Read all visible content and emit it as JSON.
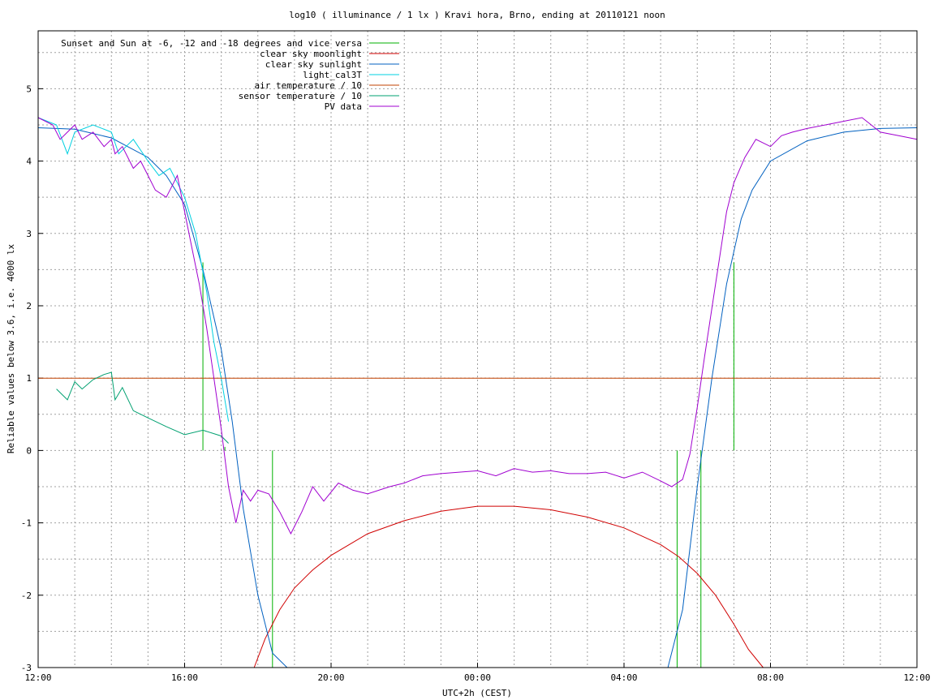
{
  "chart_data": {
    "type": "line",
    "title": "log10 ( illuminance / 1 lx ) Kravi hora, Brno, ending at 20110121 noon",
    "xlabel": "UTC+2h (CEST)",
    "ylabel": "Reliable values below 3.6, i.e. 4000 lx",
    "x_tick_labels": [
      "12:00",
      "16:00",
      "20:00",
      "00:00",
      "04:00",
      "08:00",
      "12:00"
    ],
    "x_tick_hours": [
      0,
      4,
      8,
      12,
      16,
      20,
      24
    ],
    "x_range_hours": [
      0,
      24
    ],
    "ylim": [
      -3,
      5.8
    ],
    "y_ticks": [
      -3,
      -2,
      -1,
      0,
      1,
      2,
      3,
      4,
      5
    ],
    "grid": true,
    "legend_position": "top-left",
    "series": [
      {
        "name": "Sunset and Sun at -6, -12 and -18 degrees and vice versa",
        "color": "#00b000",
        "kind": "impulses",
        "x": [
          4.5,
          5.1,
          6.4,
          17.45,
          18.1,
          19.0
        ],
        "values": [
          2.6,
          0.05,
          -3.0,
          -3.0,
          0.0,
          2.6
        ],
        "base": [
          0,
          0,
          0,
          0,
          0,
          0
        ],
        "x_alt_tops": [
          6.4,
          17.45,
          18.1
        ],
        "note_values_as_shown": [
          2.6,
          0.05,
          0.0,
          0.0,
          0.0,
          2.6
        ]
      },
      {
        "name": "clear sky moonlight",
        "color": "#d00000",
        "x": [
          5.9,
          6.2,
          6.6,
          7.0,
          7.5,
          8.0,
          9.0,
          10.0,
          11.0,
          12.0,
          13.0,
          14.0,
          15.0,
          16.0,
          17.0,
          17.5,
          18.0,
          18.5,
          19.0,
          19.4,
          19.8
        ],
        "values": [
          -3.0,
          -2.6,
          -2.2,
          -1.9,
          -1.65,
          -1.45,
          -1.15,
          -0.97,
          -0.84,
          -0.77,
          -0.77,
          -0.82,
          -0.92,
          -1.07,
          -1.3,
          -1.47,
          -1.7,
          -2.0,
          -2.4,
          -2.75,
          -3.0
        ]
      },
      {
        "name": "clear sky sunlight",
        "color": "#0060c0",
        "x": [
          0.0,
          1.0,
          2.0,
          3.0,
          3.5,
          4.0,
          4.5,
          5.0,
          5.3,
          5.6,
          6.0,
          6.4,
          6.8,
          17.2,
          17.6,
          18.0,
          18.4,
          18.8,
          19.2,
          19.5,
          20.0,
          21.0,
          22.0,
          23.0,
          24.0
        ],
        "values": [
          4.46,
          4.44,
          4.32,
          4.05,
          3.8,
          3.4,
          2.5,
          1.4,
          0.4,
          -0.8,
          -2.0,
          -2.8,
          -3.0,
          -3.0,
          -2.2,
          -0.5,
          1.0,
          2.3,
          3.2,
          3.6,
          4.0,
          4.28,
          4.4,
          4.45,
          4.46
        ]
      },
      {
        "name": "light_cal3T",
        "color": "#00d0e0",
        "x": [
          0.0,
          0.5,
          0.8,
          1.0,
          1.5,
          2.0,
          2.2,
          2.6,
          3.0,
          3.3,
          3.6,
          3.8,
          4.0,
          4.3,
          4.6,
          4.8,
          5.0,
          5.2
        ],
        "values": [
          4.6,
          4.5,
          4.1,
          4.4,
          4.5,
          4.4,
          4.1,
          4.3,
          4.0,
          3.8,
          3.9,
          3.7,
          3.5,
          3.0,
          2.2,
          1.5,
          1.0,
          0.4
        ]
      },
      {
        "name": "air temperature / 10",
        "color": "#c04000",
        "x": [
          0.0,
          23.0
        ],
        "values": [
          1.0,
          1.0
        ]
      },
      {
        "name": "sensor temperature / 10",
        "color": "#00a070",
        "x": [
          0.5,
          0.8,
          1.0,
          1.2,
          1.5,
          1.8,
          2.0,
          2.1,
          2.3,
          2.6,
          3.0,
          3.5,
          4.0,
          4.5,
          5.0,
          5.2
        ],
        "values": [
          0.85,
          0.7,
          0.95,
          0.85,
          0.98,
          1.05,
          1.08,
          0.7,
          0.87,
          0.55,
          0.45,
          0.33,
          0.22,
          0.28,
          0.2,
          0.1
        ]
      },
      {
        "name": "PV data",
        "color": "#a000d0",
        "x": [
          0.0,
          0.4,
          0.6,
          0.8,
          1.0,
          1.2,
          1.5,
          1.8,
          2.0,
          2.1,
          2.3,
          2.6,
          2.8,
          3.0,
          3.2,
          3.5,
          3.7,
          3.8,
          4.0,
          4.2,
          4.4,
          4.6,
          4.8,
          5.0,
          5.2,
          5.4,
          5.6,
          5.8,
          6.0,
          6.3,
          6.6,
          6.9,
          7.2,
          7.5,
          7.8,
          8.2,
          8.6,
          9.0,
          9.6,
          10.0,
          10.5,
          11.0,
          11.5,
          12.0,
          12.5,
          13.0,
          13.5,
          14.0,
          14.5,
          15.0,
          15.5,
          16.0,
          16.5,
          17.0,
          17.3,
          17.6,
          17.8,
          18.0,
          18.2,
          18.5,
          18.8,
          19.0,
          19.3,
          19.6,
          20.0,
          20.3,
          20.6,
          21.0,
          21.5,
          22.0,
          22.5,
          23.0,
          23.5,
          24.0
        ],
        "values": [
          4.6,
          4.5,
          4.3,
          4.4,
          4.5,
          4.3,
          4.4,
          4.2,
          4.3,
          4.1,
          4.2,
          3.9,
          4.0,
          3.8,
          3.6,
          3.5,
          3.7,
          3.8,
          3.3,
          2.8,
          2.3,
          1.7,
          1.0,
          0.3,
          -0.5,
          -1.0,
          -0.55,
          -0.7,
          -0.55,
          -0.6,
          -0.85,
          -1.15,
          -0.85,
          -0.5,
          -0.7,
          -0.45,
          -0.55,
          -0.6,
          -0.5,
          -0.45,
          -0.35,
          -0.32,
          -0.3,
          -0.28,
          -0.35,
          -0.25,
          -0.3,
          -0.28,
          -0.32,
          -0.32,
          -0.3,
          -0.38,
          -0.3,
          -0.42,
          -0.5,
          -0.4,
          -0.05,
          0.6,
          1.3,
          2.3,
          3.3,
          3.7,
          4.05,
          4.3,
          4.2,
          4.35,
          4.4,
          4.45,
          4.5,
          4.55,
          4.6,
          4.4,
          4.35,
          4.3
        ]
      }
    ]
  }
}
